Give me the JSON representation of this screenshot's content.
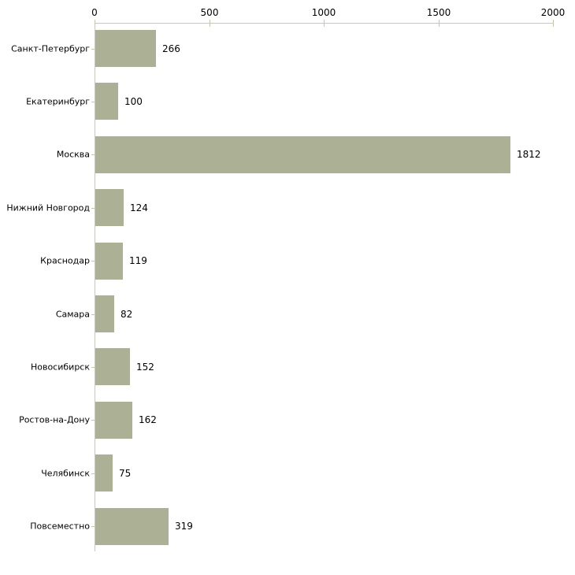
{
  "chart_data": {
    "type": "bar",
    "orientation": "horizontal",
    "title": "",
    "xlabel": "",
    "ylabel": "",
    "categories": [
      "Санкт-Петербург",
      "Екатеринбург",
      "Москва",
      "Нижний Новгород",
      "Краснодар",
      "Самара",
      "Новосибирск",
      "Ростов-на-Дону",
      "Челябинск",
      "Повсеместно"
    ],
    "values": [
      266,
      100,
      1812,
      124,
      119,
      82,
      152,
      162,
      75,
      319
    ],
    "value_labels": [
      "266",
      "100",
      "1812",
      "124",
      "119",
      "82",
      "152",
      "162",
      "75",
      "319"
    ],
    "x_axis": {
      "position": "top",
      "min": 0,
      "max": 2000,
      "ticks": [
        0,
        500,
        1000,
        1500,
        2000
      ],
      "tick_labels": [
        "0",
        "500",
        "1000",
        "1500",
        "2000"
      ]
    },
    "grid": false,
    "legend": false,
    "colors": {
      "bar_fill": "#acb196",
      "axis_line": "#c8c8c0",
      "tick_mark": "#c3c9a2",
      "text": "#000000",
      "background": "#ffffff"
    }
  }
}
